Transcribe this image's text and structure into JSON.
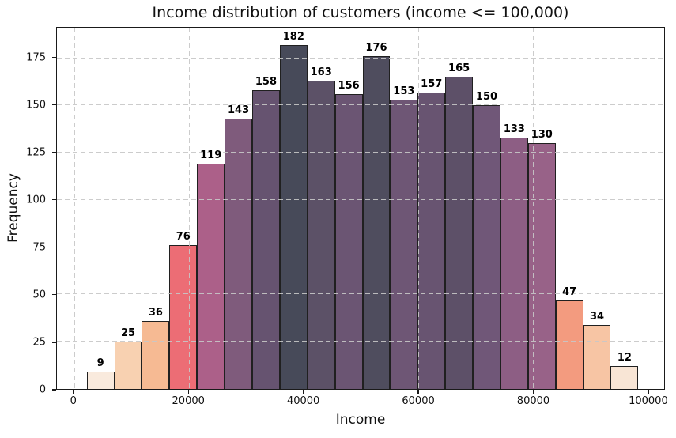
{
  "title": "Income distribution of customers (income <= 100,000)",
  "chart_data": {
    "type": "bar",
    "subtype": "histogram",
    "title": "Income distribution of customers (income <= 100,000)",
    "xlabel": "Income",
    "ylabel": "Frequency",
    "bin_start": 2200,
    "bin_width": 4810,
    "values": [
      9,
      25,
      36,
      76,
      119,
      143,
      158,
      182,
      163,
      156,
      176,
      153,
      157,
      165,
      150,
      133,
      130,
      47,
      34,
      12
    ],
    "bar_labels": [
      "9",
      "25",
      "36",
      "76",
      "119",
      "143",
      "158",
      "182",
      "163",
      "156",
      "176",
      "153",
      "157",
      "165",
      "150",
      "133",
      "130",
      "47",
      "34",
      "12"
    ],
    "bar_colors": [
      "#f9eadd",
      "#f8d1b1",
      "#f6ba93",
      "#ec6d75",
      "#ac6089",
      "#7f5b7c",
      "#665370",
      "#474a59",
      "#5c5167",
      "#6b5573",
      "#4f4d5e",
      "#6e5675",
      "#685471",
      "#5d5068",
      "#705778",
      "#8d5e84",
      "#986288",
      "#f39b7f",
      "#f7c5a4",
      "#f8e5d5"
    ],
    "bar_edge_color": "#202020",
    "xlim": [
      -3000,
      102900
    ],
    "ylim": [
      0,
      191.1
    ],
    "x_tick_values": [
      0,
      20000,
      40000,
      60000,
      80000,
      100000
    ],
    "x_tick_labels": [
      "0",
      "20000",
      "40000",
      "60000",
      "80000",
      "100000"
    ],
    "y_tick_values": [
      0,
      25,
      50,
      75,
      100,
      125,
      150,
      175
    ],
    "y_tick_labels": [
      "0",
      "25",
      "50",
      "75",
      "100",
      "125",
      "150",
      "175"
    ],
    "grid": "dashed",
    "grid_color": "#c7c7c7",
    "background": "#ffffff",
    "legend": "none"
  }
}
